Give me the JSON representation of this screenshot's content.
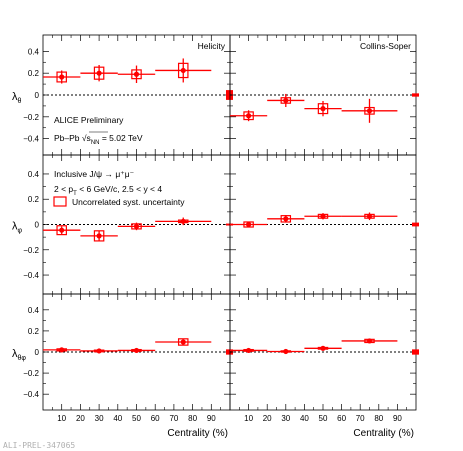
{
  "figure": {
    "preliminary_label": "ALICE Preliminary",
    "system_label": "Pb–Pb √s",
    "system_sub": "NN",
    "system_energy": " = 5.02 TeV",
    "process_label": "Inclusive J/ψ → μ⁺μ⁻",
    "kinematics_line1": "2 < p",
    "kinematics_sub": "T",
    "kinematics_line2": " < 6 GeV/c, 2.5 < y < 4",
    "legend_syst": "Uncorrelated syst. uncertainty",
    "watermark": "ALI-PREL-347065",
    "colors": {
      "data": "#ff0000",
      "axis": "#000000",
      "watermark": "#b0b0b0"
    }
  },
  "chart_data": [
    {
      "type": "scatter",
      "frame": "Helicity",
      "ylabel": "λ",
      "ylabel_sub": "θ",
      "xlabel": "",
      "xlim": [
        0,
        100
      ],
      "ylim": [
        -0.55,
        0.55
      ],
      "yticks": [
        "0.4",
        "0.2",
        "0",
        "−0.2",
        "−0.4"
      ],
      "ytick_values": [
        0.4,
        0.2,
        0,
        -0.2,
        -0.4
      ],
      "xticks": [],
      "xtick_values": [
        10,
        20,
        30,
        40,
        50,
        60,
        70,
        80,
        90
      ],
      "bins": [
        [
          0,
          20
        ],
        [
          20,
          40
        ],
        [
          40,
          60
        ],
        [
          60,
          90
        ]
      ],
      "x": [
        10,
        30,
        50,
        75
      ],
      "y": [
        0.165,
        0.2,
        0.19,
        0.225
      ],
      "stat": [
        0.06,
        0.075,
        0.08,
        0.11
      ],
      "syst": [
        0.045,
        0.055,
        0.04,
        0.065
      ],
      "global_box": 0.09
    },
    {
      "type": "scatter",
      "frame": "Collins-Soper",
      "ylabel": "",
      "ylabel_sub": "",
      "xlabel": "",
      "xlim": [
        0,
        100
      ],
      "ylim": [
        -0.55,
        0.55
      ],
      "yticks": [],
      "ytick_values": [
        0.4,
        0.2,
        0,
        -0.2,
        -0.4
      ],
      "xticks": [],
      "xtick_values": [
        10,
        20,
        30,
        40,
        50,
        60,
        70,
        80,
        90
      ],
      "bins": [
        [
          0,
          20
        ],
        [
          20,
          40
        ],
        [
          40,
          60
        ],
        [
          60,
          90
        ]
      ],
      "x": [
        10,
        30,
        50,
        75
      ],
      "y": [
        -0.19,
        -0.05,
        -0.125,
        -0.145
      ],
      "stat": [
        0.05,
        0.06,
        0.07,
        0.11
      ],
      "syst": [
        0.035,
        0.025,
        0.045,
        0.03
      ],
      "global_box": 0.03
    },
    {
      "type": "scatter",
      "frame": "",
      "ylabel": "λ",
      "ylabel_sub": "φ",
      "xlabel": "",
      "xlim": [
        0,
        100
      ],
      "ylim": [
        -0.55,
        0.55
      ],
      "yticks": [
        "0.4",
        "0.2",
        "0",
        "−0.2",
        "−0.4"
      ],
      "ytick_values": [
        0.4,
        0.2,
        0,
        -0.2,
        -0.4
      ],
      "xticks": [],
      "xtick_values": [
        10,
        20,
        30,
        40,
        50,
        60,
        70,
        80,
        90
      ],
      "bins": [
        [
          0,
          20
        ],
        [
          20,
          40
        ],
        [
          40,
          60
        ],
        [
          60,
          90
        ]
      ],
      "x": [
        10,
        30,
        50,
        75
      ],
      "y": [
        -0.045,
        -0.09,
        -0.015,
        0.025
      ],
      "stat": [
        0.03,
        0.04,
        0.03,
        0.03
      ],
      "syst": [
        0.035,
        0.04,
        0.02,
        0.01
      ],
      "global_box": 0.015
    },
    {
      "type": "scatter",
      "frame": "",
      "ylabel": "",
      "ylabel_sub": "",
      "xlabel": "",
      "xlim": [
        0,
        100
      ],
      "ylim": [
        -0.55,
        0.55
      ],
      "yticks": [],
      "ytick_values": [
        0.4,
        0.2,
        0,
        -0.2,
        -0.4
      ],
      "xticks": [],
      "xtick_values": [
        10,
        20,
        30,
        40,
        50,
        60,
        70,
        80,
        90
      ],
      "bins": [
        [
          0,
          20
        ],
        [
          20,
          40
        ],
        [
          40,
          60
        ],
        [
          60,
          90
        ]
      ],
      "x": [
        10,
        30,
        50,
        75
      ],
      "y": [
        0.0,
        0.045,
        0.065,
        0.065
      ],
      "stat": [
        0.02,
        0.03,
        0.025,
        0.03
      ],
      "syst": [
        0.02,
        0.025,
        0.015,
        0.015
      ],
      "global_box": 0.03
    },
    {
      "type": "scatter",
      "frame": "",
      "ylabel": "λ",
      "ylabel_sub": "θφ",
      "xlabel": "Centrality (%)",
      "xlim": [
        0,
        100
      ],
      "ylim": [
        -0.55,
        0.55
      ],
      "yticks": [
        "0.4",
        "0.2",
        "0",
        "−0.2",
        "−0.4"
      ],
      "ytick_values": [
        0.4,
        0.2,
        0,
        -0.2,
        -0.4
      ],
      "xticks": [
        "10",
        "20",
        "30",
        "40",
        "50",
        "60",
        "70",
        "80",
        "90"
      ],
      "xtick_values": [
        10,
        20,
        30,
        40,
        50,
        60,
        70,
        80,
        90
      ],
      "bins": [
        [
          0,
          20
        ],
        [
          20,
          40
        ],
        [
          40,
          60
        ],
        [
          60,
          90
        ]
      ],
      "x": [
        10,
        30,
        50,
        75
      ],
      "y": [
        0.02,
        0.01,
        0.015,
        0.095
      ],
      "stat": [
        0.015,
        0.015,
        0.015,
        0.025
      ],
      "syst": [
        0.01,
        0.008,
        0.008,
        0.03
      ],
      "global_box": 0.05
    },
    {
      "type": "scatter",
      "frame": "",
      "ylabel": "",
      "ylabel_sub": "",
      "xlabel": "Centrality (%)",
      "xlim": [
        0,
        100
      ],
      "ylim": [
        -0.55,
        0.55
      ],
      "yticks": [],
      "ytick_values": [
        0.4,
        0.2,
        0,
        -0.2,
        -0.4
      ],
      "xticks": [
        "10",
        "20",
        "30",
        "40",
        "50",
        "60",
        "70",
        "80",
        "90"
      ],
      "xtick_values": [
        10,
        20,
        30,
        40,
        50,
        60,
        70,
        80,
        90
      ],
      "bins": [
        [
          0,
          20
        ],
        [
          20,
          40
        ],
        [
          40,
          60
        ],
        [
          60,
          90
        ]
      ],
      "x": [
        10,
        30,
        50,
        75
      ],
      "y": [
        0.015,
        0.005,
        0.035,
        0.105
      ],
      "stat": [
        0.01,
        0.01,
        0.015,
        0.02
      ],
      "syst": [
        0.008,
        0.006,
        0.008,
        0.015
      ],
      "global_box": 0.05
    }
  ]
}
